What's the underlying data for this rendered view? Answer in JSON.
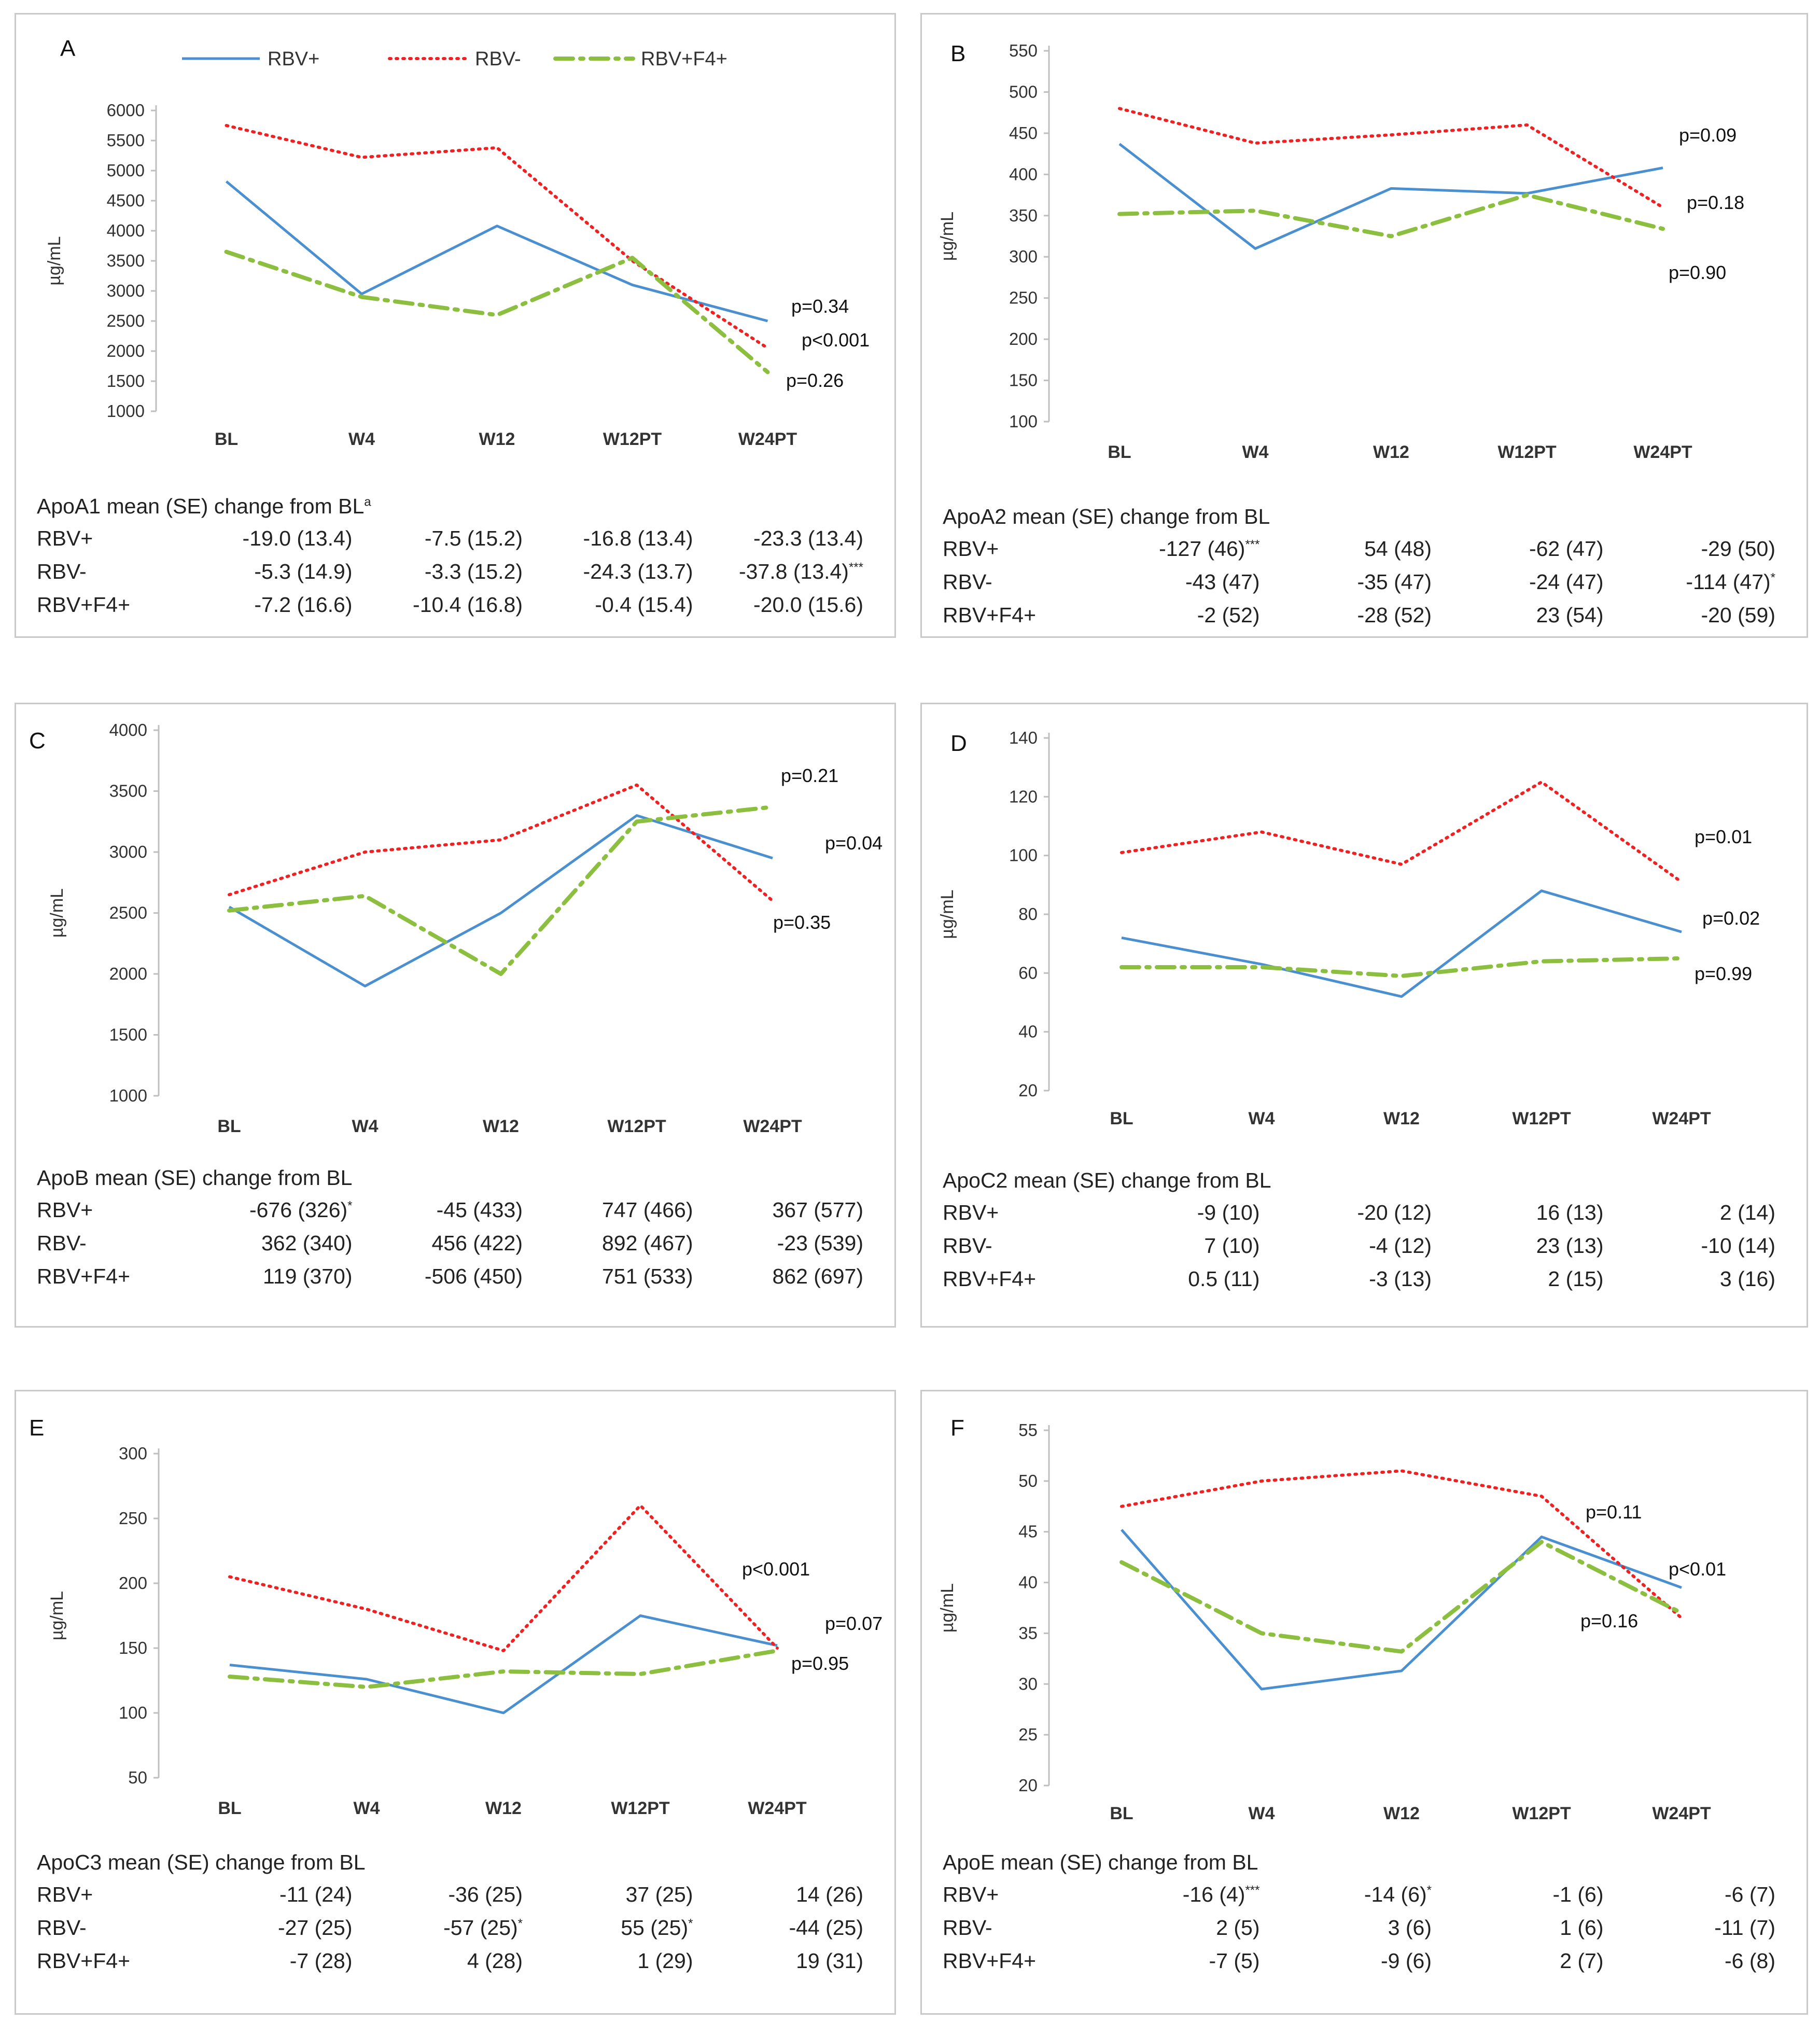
{
  "legend": {
    "rbv_pos": "RBV+",
    "rbv_neg": "RBV-",
    "rbv_f4": "RBV+F4+"
  },
  "colors": {
    "rbv_pos": "#4a8fd0",
    "rbv_neg": "#ee2222",
    "rbv_f4": "#8cbf3f"
  },
  "row_labels": [
    "RBV+",
    "RBV-",
    "RBV+F4+"
  ],
  "chart_data": [
    {
      "id": "A",
      "type": "line",
      "letter": "A",
      "ylabel": "µg/mL",
      "categories": [
        "BL",
        "W4",
        "W12",
        "W12PT",
        "W24PT"
      ],
      "ylim": [
        1000,
        6000
      ],
      "yticks": [
        "1000",
        "1500",
        "2000",
        "2500",
        "3000",
        "3500",
        "4000",
        "4500",
        "5000",
        "5500",
        "6000"
      ],
      "series": [
        {
          "name": "RBV+",
          "values": [
            4820,
            2950,
            4080,
            3100,
            2500
          ]
        },
        {
          "name": "RBV-",
          "values": [
            5750,
            5220,
            5380,
            3500,
            2050
          ]
        },
        {
          "name": "RBV+F4+",
          "values": [
            3650,
            2900,
            2600,
            3550,
            1650
          ]
        }
      ],
      "pvalues": [
        "p=0.34",
        "p<0.001",
        "p=0.26"
      ],
      "table": {
        "title": "ApoA1 mean (SE) change from BL",
        "title_mark": "a",
        "rows": [
          [
            "-19.0 (13.4)",
            "-7.5 (15.2)",
            "-16.8 (13.4)",
            "-23.3 (13.4)"
          ],
          [
            "-5.3 (14.9)",
            "-3.3 (15.2)",
            "-24.3 (13.7)",
            "-37.8 (13.4)"
          ],
          [
            "-7.2 (16.6)",
            "-10.4 (16.8)",
            "-0.4 (15.4)",
            "-20.0 (15.6)"
          ]
        ],
        "marks": [
          [
            "",
            "",
            "",
            ""
          ],
          [
            "",
            "",
            "",
            "***"
          ],
          [
            "",
            "",
            "",
            ""
          ]
        ]
      }
    },
    {
      "id": "B",
      "type": "line",
      "letter": "B",
      "ylabel": "µg/mL",
      "categories": [
        "BL",
        "W4",
        "W12",
        "W12PT",
        "W24PT"
      ],
      "ylim": [
        100,
        550
      ],
      "yticks": [
        "100",
        "150",
        "200",
        "250",
        "300",
        "350",
        "400",
        "450",
        "500",
        "550"
      ],
      "series": [
        {
          "name": "RBV+",
          "values": [
            437,
            310,
            383,
            377,
            408
          ]
        },
        {
          "name": "RBV-",
          "values": [
            480,
            438,
            448,
            460,
            360
          ]
        },
        {
          "name": "RBV+F4+",
          "values": [
            352,
            356,
            325,
            375,
            334
          ]
        }
      ],
      "pvalues": [
        "p=0.09",
        "p=0.18",
        "p=0.90"
      ],
      "table": {
        "title": "ApoA2 mean (SE) change from BL",
        "title_mark": "",
        "rows": [
          [
            "-127 (46)",
            "54 (48)",
            "-62 (47)",
            "-29 (50)"
          ],
          [
            "-43 (47)",
            "-35 (47)",
            "-24 (47)",
            "-114 (47)"
          ],
          [
            "-2 (52)",
            "-28 (52)",
            "23 (54)",
            "-20 (59)"
          ]
        ],
        "marks": [
          [
            "***",
            "",
            "",
            ""
          ],
          [
            "",
            "",
            "",
            "*"
          ],
          [
            "",
            "",
            "",
            ""
          ]
        ]
      }
    },
    {
      "id": "C",
      "type": "line",
      "letter": "C",
      "ylabel": "µg/mL",
      "categories": [
        "BL",
        "W4",
        "W12",
        "W12PT",
        "W24PT"
      ],
      "ylim": [
        1000,
        4000
      ],
      "yticks": [
        "1000",
        "1500",
        "2000",
        "2500",
        "3000",
        "3500",
        "4000"
      ],
      "series": [
        {
          "name": "RBV+",
          "values": [
            2550,
            1900,
            2500,
            3300,
            2950
          ]
        },
        {
          "name": "RBV-",
          "values": [
            2650,
            3000,
            3100,
            3550,
            2600
          ]
        },
        {
          "name": "RBV+F4+",
          "values": [
            2520,
            2640,
            2000,
            3250,
            3370
          ]
        }
      ],
      "pvalues": [
        "p=0.21",
        "p=0.04",
        "p=0.35"
      ],
      "table": {
        "title": "ApoB mean (SE) change from BL",
        "title_mark": "",
        "rows": [
          [
            "-676 (326)",
            "-45 (433)",
            "747 (466)",
            "367 (577)"
          ],
          [
            "362 (340)",
            "456 (422)",
            "892 (467)",
            "-23 (539)"
          ],
          [
            "119 (370)",
            "-506 (450)",
            "751 (533)",
            "862 (697)"
          ]
        ],
        "marks": [
          [
            "*",
            "",
            "",
            ""
          ],
          [
            "",
            "",
            "",
            ""
          ],
          [
            "",
            "",
            "",
            ""
          ]
        ]
      }
    },
    {
      "id": "D",
      "type": "line",
      "letter": "D",
      "ylabel": "µg/mL",
      "categories": [
        "BL",
        "W4",
        "W12",
        "W12PT",
        "W24PT"
      ],
      "ylim": [
        20,
        140
      ],
      "yticks": [
        "20",
        "40",
        "60",
        "80",
        "100",
        "120",
        "140"
      ],
      "series": [
        {
          "name": "RBV+",
          "values": [
            72,
            63,
            52,
            88,
            74
          ]
        },
        {
          "name": "RBV-",
          "values": [
            101,
            108,
            97,
            125,
            91
          ]
        },
        {
          "name": "RBV+F4+",
          "values": [
            62,
            62,
            59,
            64,
            65
          ]
        }
      ],
      "pvalues": [
        "p=0.01",
        "p=0.02",
        "p=0.99"
      ],
      "table": {
        "title": "ApoC2 mean (SE) change from BL",
        "title_mark": "",
        "rows": [
          [
            "-9 (10)",
            "-20 (12)",
            "16 (13)",
            "2 (14)"
          ],
          [
            "7 (10)",
            "-4 (12)",
            "23 (13)",
            "-10 (14)"
          ],
          [
            "0.5 (11)",
            "-3 (13)",
            "2 (15)",
            "3 (16)"
          ]
        ],
        "marks": [
          [
            "",
            "",
            "",
            ""
          ],
          [
            "",
            "",
            "",
            ""
          ],
          [
            "",
            "",
            "",
            ""
          ]
        ]
      }
    },
    {
      "id": "E",
      "type": "line",
      "letter": "E",
      "ylabel": "µg/mL",
      "categories": [
        "BL",
        "W4",
        "W12",
        "W12PT",
        "W24PT"
      ],
      "ylim": [
        50,
        300
      ],
      "yticks": [
        "50",
        "100",
        "150",
        "200",
        "250",
        "300"
      ],
      "series": [
        {
          "name": "RBV+",
          "values": [
            137,
            126,
            100,
            175,
            152
          ]
        },
        {
          "name": "RBV-",
          "values": [
            205,
            180,
            148,
            260,
            150
          ]
        },
        {
          "name": "RBV+F4+",
          "values": [
            128,
            120,
            132,
            130,
            148
          ]
        }
      ],
      "pvalues": [
        "p<0.001",
        "p=0.07",
        "p=0.95"
      ],
      "table": {
        "title": "ApoC3 mean (SE) change from BL",
        "title_mark": "",
        "rows": [
          [
            "-11 (24)",
            "-36 (25)",
            "37 (25)",
            "14 (26)"
          ],
          [
            "-27 (25)",
            "-57 (25)",
            "55 (25)",
            "-44 (25)"
          ],
          [
            "-7 (28)",
            "4 (28)",
            "1 (29)",
            "19 (31)"
          ]
        ],
        "marks": [
          [
            "",
            "",
            "",
            ""
          ],
          [
            "",
            "*",
            "*",
            ""
          ],
          [
            "",
            "",
            "",
            ""
          ]
        ]
      }
    },
    {
      "id": "F",
      "type": "line",
      "letter": "F",
      "ylabel": "µg/mL",
      "categories": [
        "BL",
        "W4",
        "W12",
        "W12PT",
        "W24PT"
      ],
      "ylim": [
        20,
        55
      ],
      "yticks": [
        "20",
        "25",
        "30",
        "35",
        "40",
        "45",
        "50",
        "55"
      ],
      "series": [
        {
          "name": "RBV+",
          "values": [
            45.2,
            29.5,
            31.3,
            44.5,
            39.5
          ]
        },
        {
          "name": "RBV-",
          "values": [
            47.5,
            50.0,
            51.0,
            48.5,
            36.5
          ]
        },
        {
          "name": "RBV+F4+",
          "values": [
            42.0,
            35.0,
            33.2,
            44.0,
            37.0
          ]
        }
      ],
      "pvalues": [
        "p=0.11",
        "p<0.01",
        "p=0.16"
      ],
      "table": {
        "title": "ApoE mean (SE) change from BL",
        "title_mark": "",
        "rows": [
          [
            "-16 (4)",
            "-14 (6)",
            "-1 (6)",
            "-6 (7)"
          ],
          [
            "2 (5)",
            "3 (6)",
            "1 (6)",
            "-11 (7)"
          ],
          [
            "-7 (5)",
            "-9 (6)",
            "2 (7)",
            "-6 (8)"
          ]
        ],
        "marks": [
          [
            "***",
            "*",
            "",
            ""
          ],
          [
            "",
            "",
            "",
            ""
          ],
          [
            "",
            "",
            "",
            ""
          ]
        ]
      }
    }
  ]
}
